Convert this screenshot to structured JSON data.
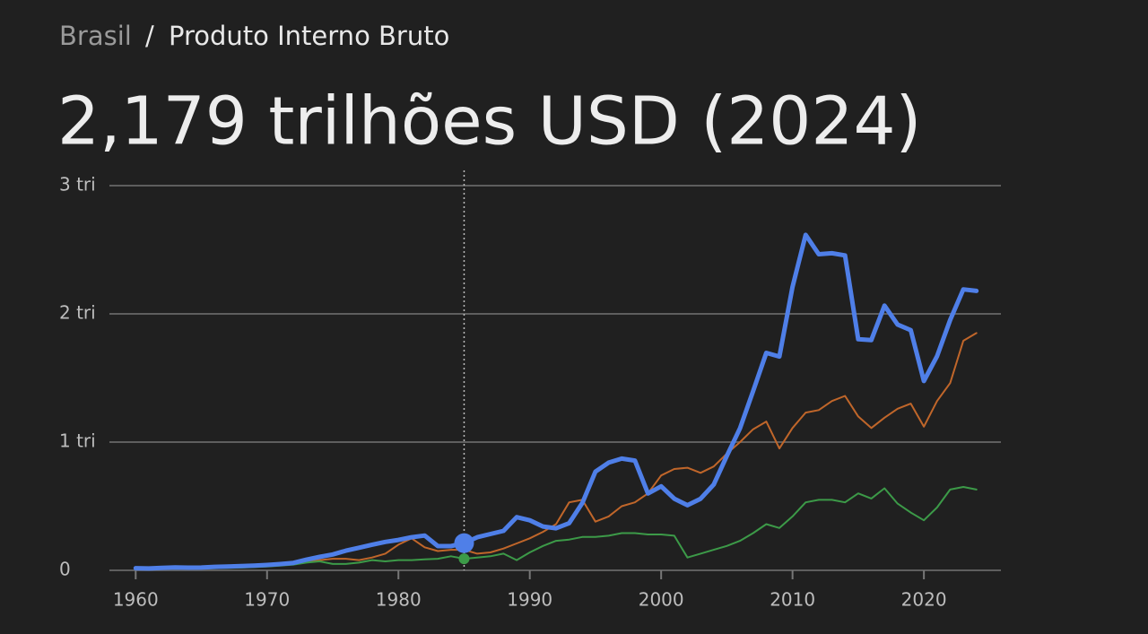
{
  "breadcrumb": [
    "Brasil",
    "Produto Interno Bruto"
  ],
  "separator": "/",
  "chart_data": {
    "type": "line",
    "title": "2,179 trilhões USD (2024)",
    "x": [
      1960,
      1961,
      1962,
      1963,
      1964,
      1965,
      1966,
      1967,
      1968,
      1969,
      1970,
      1971,
      1972,
      1973,
      1974,
      1975,
      1976,
      1977,
      1978,
      1979,
      1980,
      1981,
      1982,
      1983,
      1984,
      1985,
      1986,
      1987,
      1988,
      1989,
      1990,
      1991,
      1992,
      1993,
      1994,
      1995,
      1996,
      1997,
      1998,
      1999,
      2000,
      2001,
      2002,
      2003,
      2004,
      2005,
      2006,
      2007,
      2008,
      2009,
      2010,
      2011,
      2012,
      2013,
      2014,
      2015,
      2016,
      2017,
      2018,
      2019,
      2020,
      2021,
      2022,
      2023,
      2024
    ],
    "series": [
      {
        "color": "#c0662a",
        "values": [
          0.02,
          0.021,
          0.022,
          0.023,
          0.024,
          0.025,
          0.027,
          0.029,
          0.031,
          0.035,
          0.04,
          0.045,
          0.052,
          0.065,
          0.08,
          0.09,
          0.09,
          0.08,
          0.1,
          0.13,
          0.2,
          0.25,
          0.18,
          0.15,
          0.16,
          0.16,
          0.13,
          0.14,
          0.17,
          0.21,
          0.25,
          0.3,
          0.36,
          0.53,
          0.55,
          0.38,
          0.42,
          0.5,
          0.53,
          0.6,
          0.74,
          0.79,
          0.8,
          0.76,
          0.81,
          0.91,
          1.0,
          1.1,
          1.16,
          0.95,
          1.11,
          1.23,
          1.25,
          1.32,
          1.36,
          1.2,
          1.11,
          1.19,
          1.26,
          1.3,
          1.12,
          1.32,
          1.46,
          1.79,
          1.85
        ]
      },
      {
        "color": "#3c9a48",
        "values": [
          0.01,
          0.011,
          0.012,
          0.013,
          0.014,
          0.015,
          0.017,
          0.019,
          0.021,
          0.025,
          0.03,
          0.037,
          0.045,
          0.06,
          0.07,
          0.05,
          0.05,
          0.06,
          0.08,
          0.07,
          0.08,
          0.08,
          0.085,
          0.09,
          0.11,
          0.09,
          0.1,
          0.11,
          0.13,
          0.08,
          0.14,
          0.19,
          0.23,
          0.24,
          0.26,
          0.26,
          0.27,
          0.29,
          0.29,
          0.28,
          0.28,
          0.27,
          0.1,
          0.13,
          0.16,
          0.19,
          0.23,
          0.29,
          0.36,
          0.33,
          0.42,
          0.53,
          0.55,
          0.55,
          0.53,
          0.6,
          0.56,
          0.64,
          0.52,
          0.45,
          0.39,
          0.49,
          0.63,
          0.65,
          0.63
        ]
      },
      {
        "color": "#4f7fe8",
        "values": [
          0.017,
          0.015,
          0.019,
          0.023,
          0.021,
          0.022,
          0.027,
          0.03,
          0.033,
          0.037,
          0.042,
          0.049,
          0.058,
          0.083,
          0.105,
          0.124,
          0.153,
          0.176,
          0.2,
          0.222,
          0.237,
          0.258,
          0.271,
          0.189,
          0.189,
          0.212,
          0.258,
          0.283,
          0.308,
          0.415,
          0.39,
          0.342,
          0.328,
          0.368,
          0.525,
          0.77,
          0.84,
          0.871,
          0.856,
          0.599,
          0.655,
          0.559,
          0.508,
          0.558,
          0.669,
          0.892,
          1.108,
          1.397,
          1.696,
          1.667,
          2.209,
          2.616,
          2.465,
          2.473,
          2.456,
          1.802,
          1.796,
          2.064,
          1.917,
          1.873,
          1.476,
          1.67,
          1.952,
          2.191,
          2.179
        ]
      }
    ],
    "highlight_x": 1985,
    "xlim": [
      1958,
      2026
    ],
    "xticks": [
      1960,
      1970,
      1980,
      1990,
      2000,
      2010,
      2020
    ],
    "ylim": [
      0,
      3
    ],
    "yticks": [
      0,
      {
        "value": 1,
        "label": "1 tri"
      },
      {
        "value": 2,
        "label": "2 tri"
      },
      {
        "value": 3,
        "label": "3 tri"
      }
    ],
    "grid": true
  }
}
